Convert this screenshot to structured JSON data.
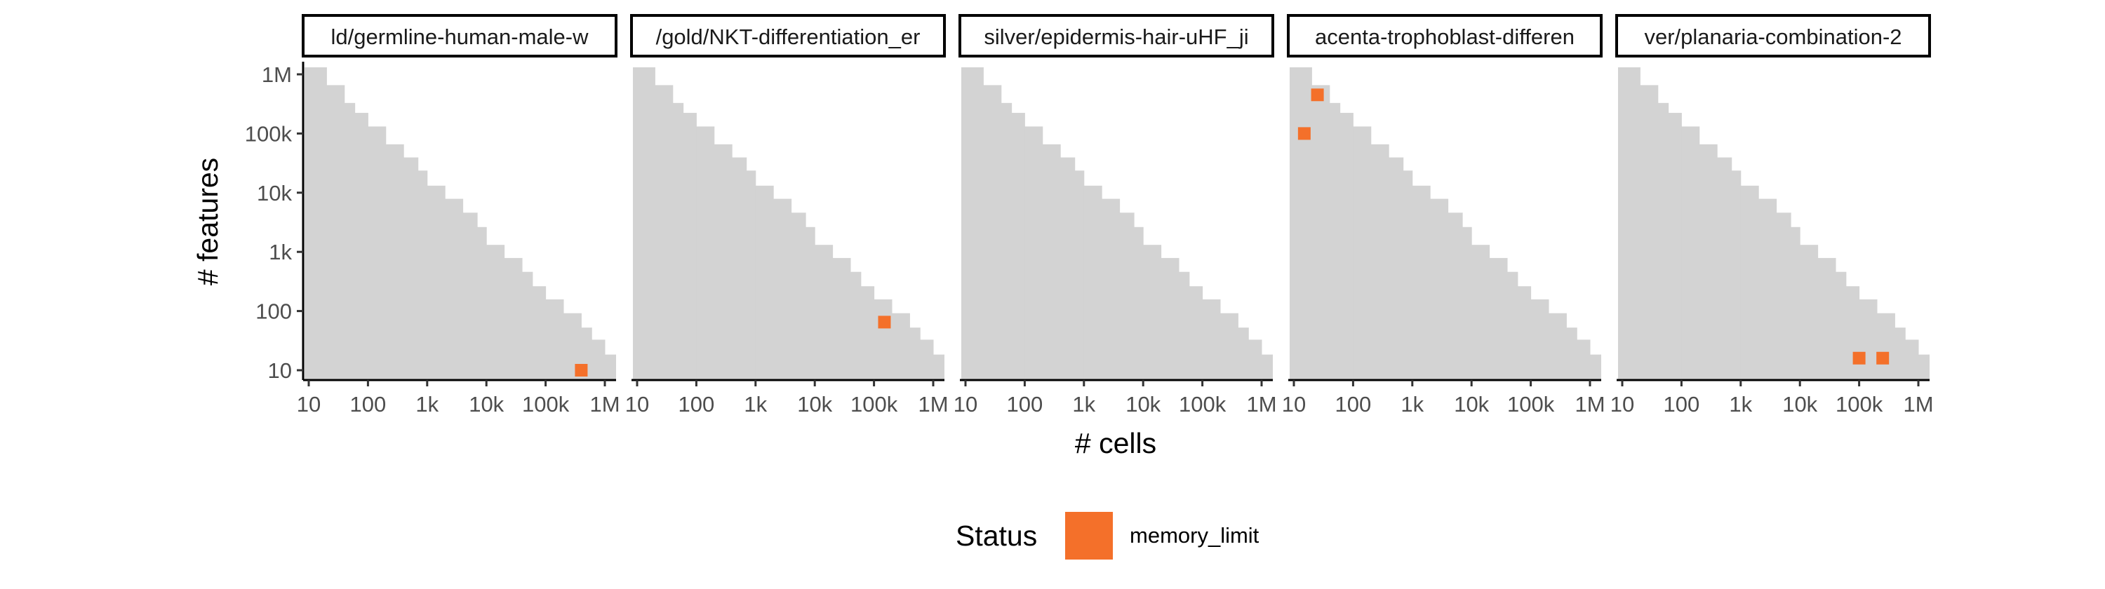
{
  "chart_data": {
    "type": "heatmap",
    "xlabel": "# cells",
    "ylabel": "# features",
    "x_scale": "log10",
    "y_scale": "log10",
    "xlim": [
      10,
      1000000
    ],
    "ylim": [
      10,
      1000000
    ],
    "x_ticks": [
      10,
      100,
      1000,
      10000,
      100000,
      1000000
    ],
    "x_tick_labels": [
      "10",
      "100",
      "1k",
      "10k",
      "100k",
      "1M"
    ],
    "y_ticks": [
      10,
      100,
      1000,
      10000,
      100000,
      1000000
    ],
    "y_tick_labels": [
      "10",
      "100",
      "1k",
      "10k",
      "100k",
      "1M"
    ],
    "grid": false,
    "background_region": {
      "description_color": "#d3d3d3",
      "steps_cells_features": [
        [
          10,
          1000000
        ],
        [
          20,
          500000
        ],
        [
          40,
          250000
        ],
        [
          60,
          170000
        ],
        [
          100,
          100000
        ],
        [
          200,
          50000
        ],
        [
          400,
          30000
        ],
        [
          700,
          18000
        ],
        [
          1000,
          10000
        ],
        [
          2000,
          6000
        ],
        [
          4000,
          3500
        ],
        [
          7000,
          2000
        ],
        [
          10000,
          1000
        ],
        [
          20000,
          600
        ],
        [
          40000,
          350
        ],
        [
          60000,
          200
        ],
        [
          100000,
          120
        ],
        [
          200000,
          70
        ],
        [
          400000,
          40
        ],
        [
          600000,
          25
        ],
        [
          1000000,
          14
        ],
        [
          1500000,
          14
        ]
      ]
    },
    "legend": {
      "title": "Status",
      "entries": [
        {
          "label": "memory_limit",
          "color": "#f4702a"
        }
      ],
      "position": "bottom"
    },
    "panels": [
      {
        "title": "ld/germline-human-male-w",
        "points": [
          {
            "cells": 400000,
            "features": 10,
            "status": "memory_limit"
          }
        ]
      },
      {
        "title": "/gold/NKT-differentiation_er",
        "points": [
          {
            "cells": 150000,
            "features": 65,
            "status": "memory_limit"
          }
        ]
      },
      {
        "title": "silver/epidermis-hair-uHF_ji",
        "points": []
      },
      {
        "title": "acenta-trophoblast-differen",
        "points": [
          {
            "cells": 15,
            "features": 100000,
            "status": "memory_limit"
          },
          {
            "cells": 25,
            "features": 450000,
            "status": "memory_limit"
          }
        ]
      },
      {
        "title": "ver/planaria-combination-2",
        "points": [
          {
            "cells": 100000,
            "features": 16,
            "status": "memory_limit"
          },
          {
            "cells": 250000,
            "features": 16,
            "status": "memory_limit"
          }
        ]
      }
    ]
  }
}
